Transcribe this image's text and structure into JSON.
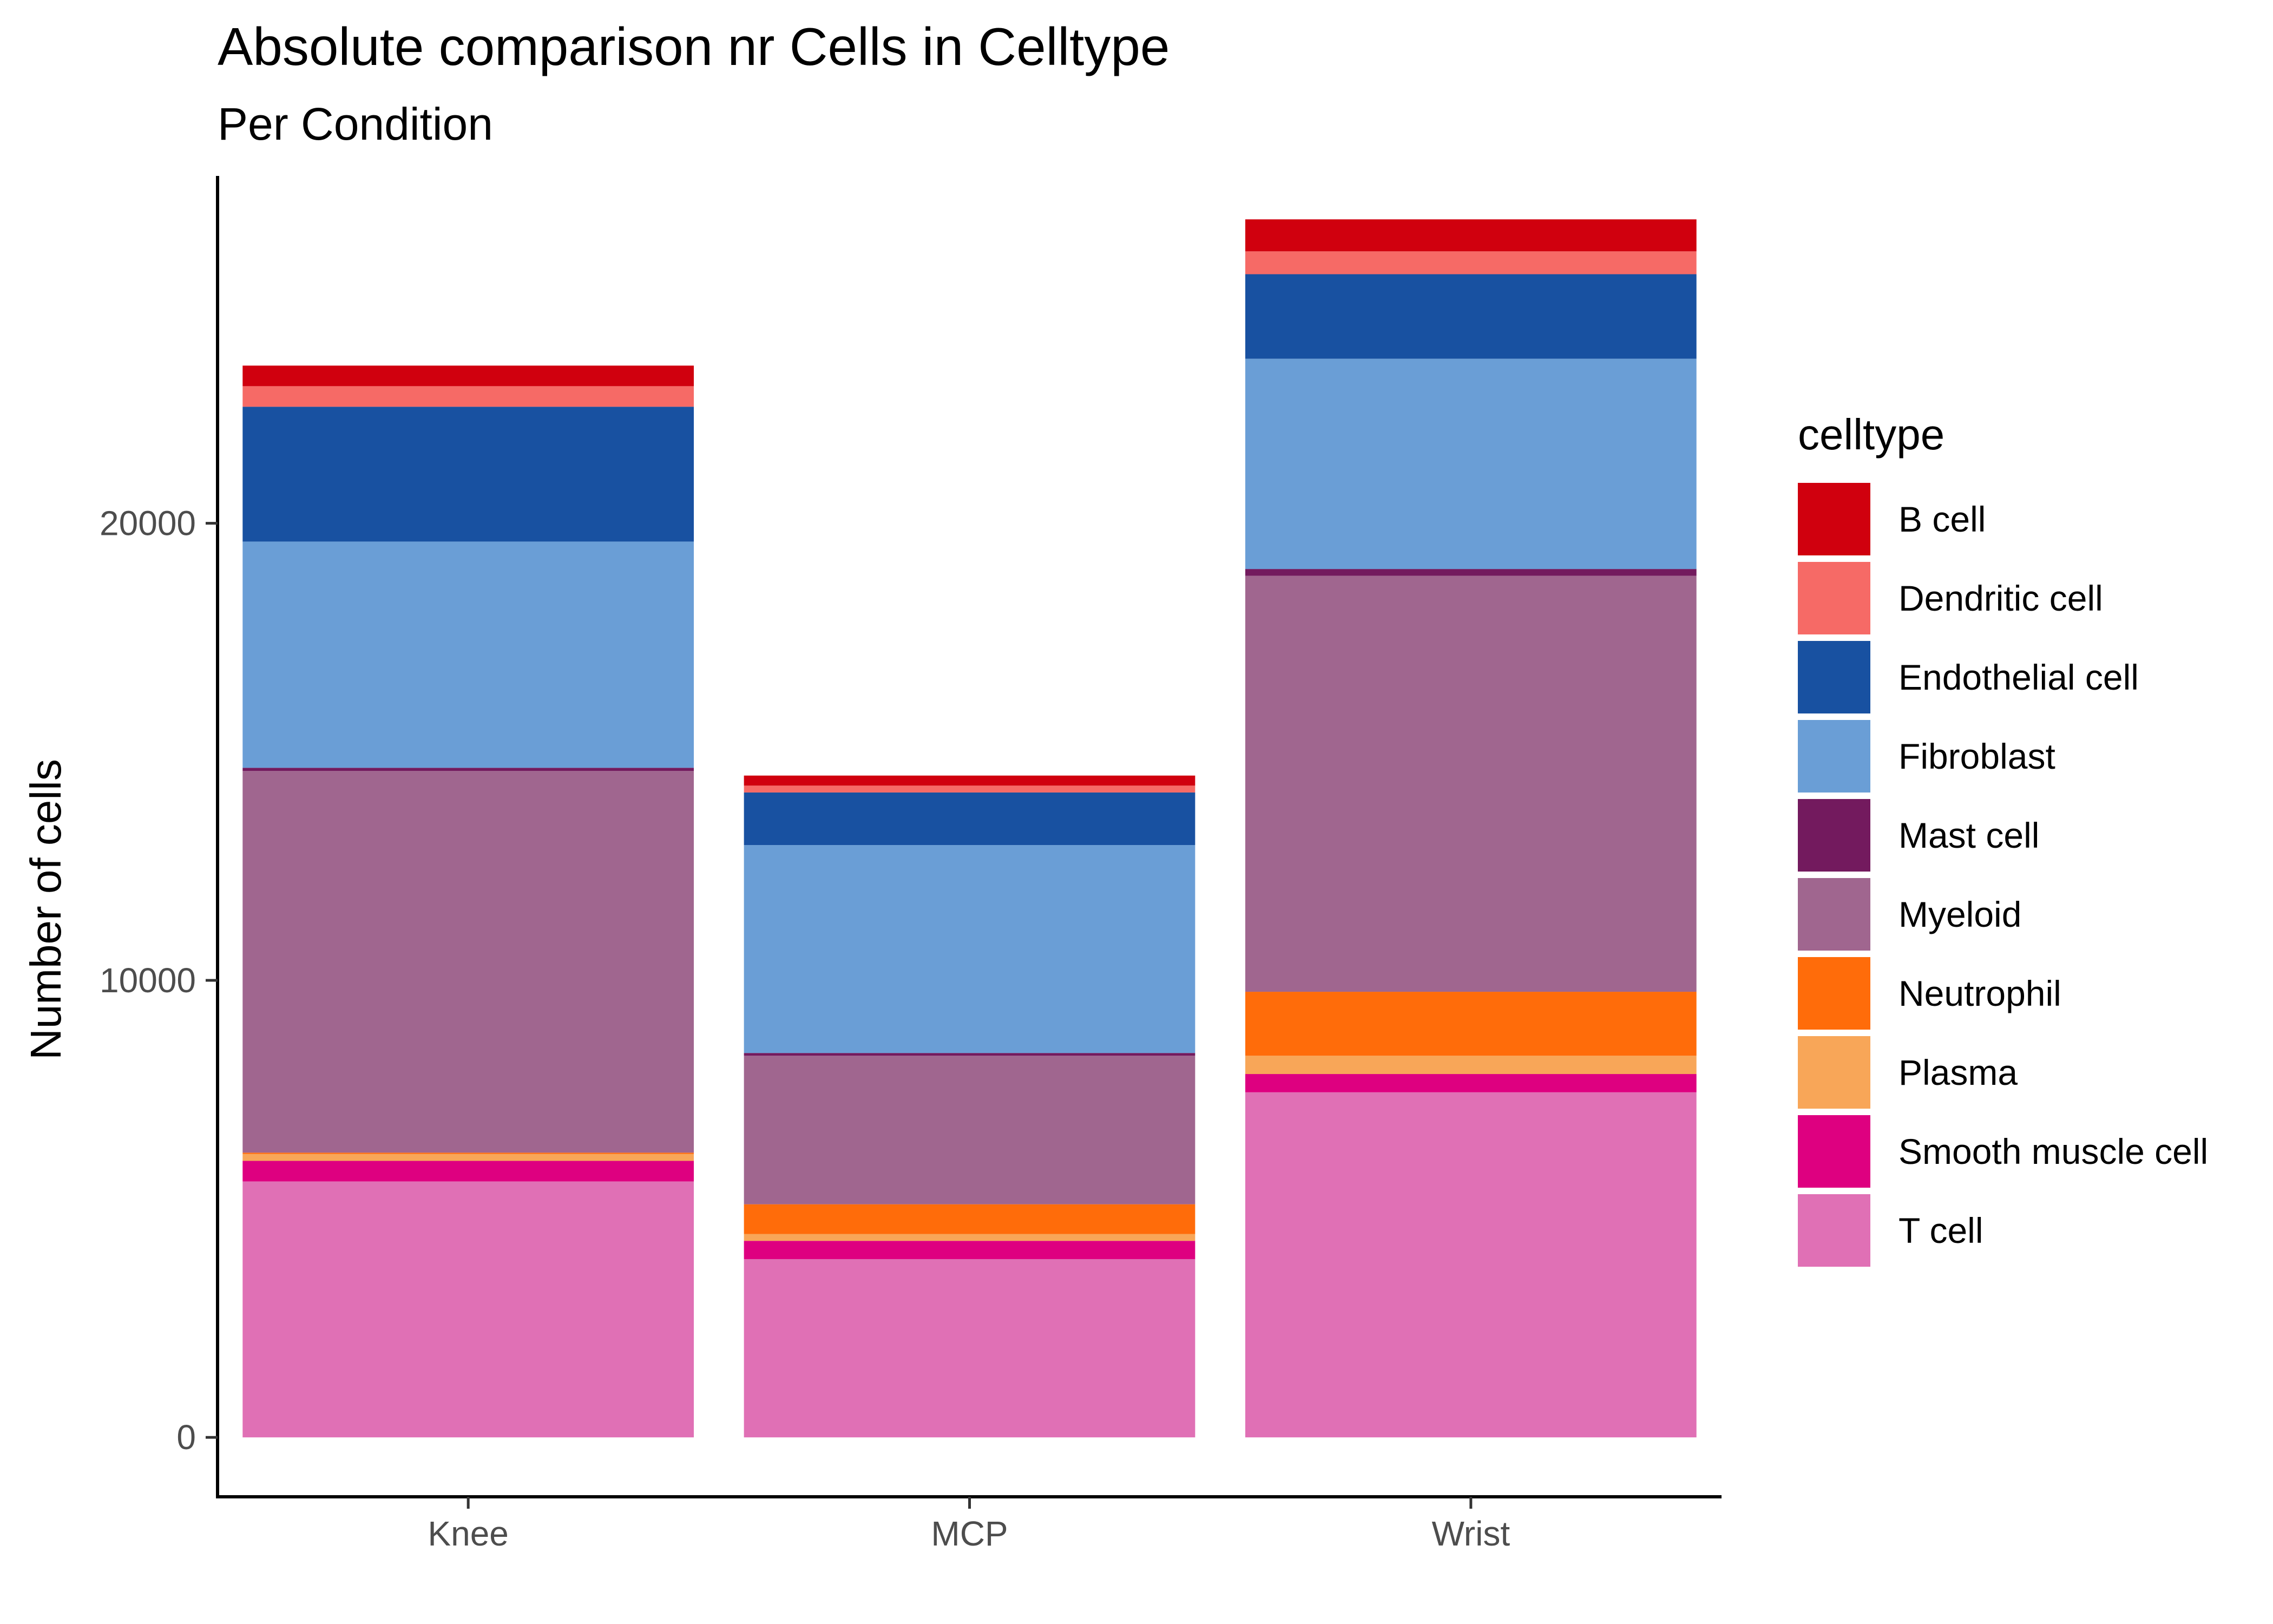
{
  "chart_data": {
    "type": "bar",
    "stacked": true,
    "title": "Absolute comparison nr Cells in Celltype",
    "subtitle": "Per Condition",
    "xlabel": "",
    "ylabel": "Number of cells",
    "categories": [
      "Knee",
      "MCP",
      "Wrist"
    ],
    "ylim": [
      -1300,
      27600
    ],
    "yticks": [
      0,
      10000,
      20000
    ],
    "grid": false,
    "legend": {
      "title": "celltype",
      "position": "right"
    },
    "series": [
      {
        "name": "T cell",
        "color": "#E070B5",
        "values": [
          5600,
          3900,
          7550
        ]
      },
      {
        "name": "Smooth muscle cell",
        "color": "#DE0080",
        "values": [
          450,
          400,
          400
        ]
      },
      {
        "name": "Plasma",
        "color": "#F8A658",
        "values": [
          150,
          150,
          400
        ]
      },
      {
        "name": "Neutrophil",
        "color": "#FF6C0A",
        "values": [
          30,
          650,
          1400
        ]
      },
      {
        "name": "Myeloid",
        "color": "#A0668F",
        "values": [
          8350,
          3250,
          9100
        ]
      },
      {
        "name": "Mast cell",
        "color": "#731A5E",
        "values": [
          70,
          60,
          150
        ]
      },
      {
        "name": "Fibroblast",
        "color": "#6A9ED6",
        "values": [
          4950,
          4550,
          4600
        ]
      },
      {
        "name": "Endothelial cell",
        "color": "#1851A1",
        "values": [
          2950,
          1150,
          1850
        ]
      },
      {
        "name": "Dendritic cell",
        "color": "#F66A66",
        "values": [
          450,
          150,
          500
        ]
      },
      {
        "name": "B cell",
        "color": "#D0000E",
        "values": [
          450,
          220,
          700
        ]
      }
    ]
  }
}
